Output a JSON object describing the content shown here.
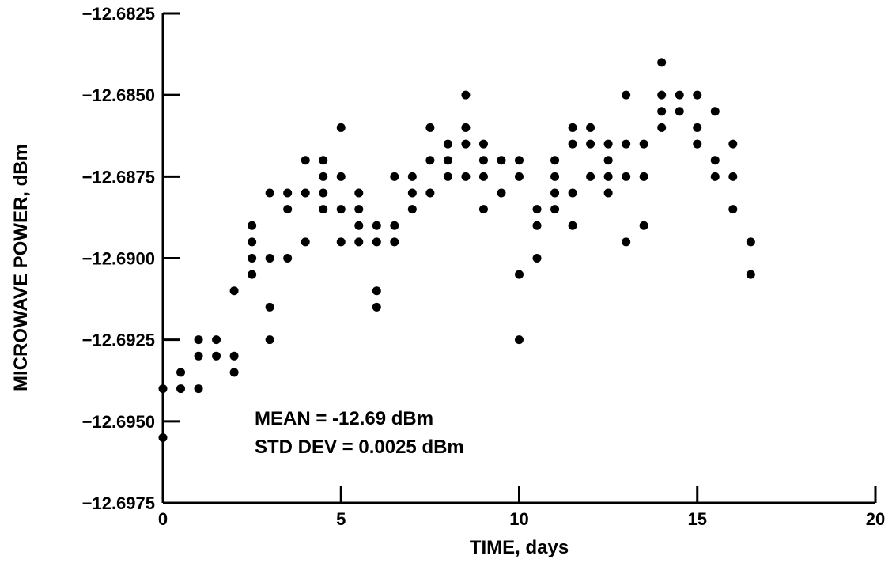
{
  "chart_data": {
    "type": "scatter",
    "xlabel": "TIME, days",
    "ylabel": "MICROWAVE POWER, dBm",
    "xlim": [
      0,
      20
    ],
    "ylim": [
      -12.6975,
      -12.6825
    ],
    "xticks": [
      0,
      5,
      10,
      15,
      20
    ],
    "yticks": [
      -12.6975,
      -12.695,
      -12.6925,
      -12.69,
      -12.6875,
      -12.685,
      -12.6825
    ],
    "xtick_labels": [
      "0",
      "5",
      "10",
      "15",
      "20"
    ],
    "ytick_labels": [
      "−12.6975",
      "−12.6950",
      "−12.6925",
      "−12.6900",
      "−12.6875",
      "−12.6850",
      "−12.6825"
    ],
    "grid": false,
    "annotations": [
      "MEAN = -12.69 dBm",
      "STD DEV = 0.0025 dBm"
    ],
    "series": [
      {
        "points": [
          [
            0,
            -12.694
          ],
          [
            0,
            -12.6955
          ],
          [
            0.5,
            -12.6935
          ],
          [
            0.5,
            -12.694
          ],
          [
            1,
            -12.6925
          ],
          [
            1,
            -12.693
          ],
          [
            1,
            -12.694
          ],
          [
            1.5,
            -12.6925
          ],
          [
            1.5,
            -12.693
          ],
          [
            2,
            -12.691
          ],
          [
            2,
            -12.693
          ],
          [
            2,
            -12.6935
          ],
          [
            2.5,
            -12.689
          ],
          [
            2.5,
            -12.6895
          ],
          [
            2.5,
            -12.69
          ],
          [
            2.5,
            -12.6905
          ],
          [
            3,
            -12.688
          ],
          [
            3,
            -12.69
          ],
          [
            3,
            -12.6915
          ],
          [
            3,
            -12.6925
          ],
          [
            3.5,
            -12.688
          ],
          [
            3.5,
            -12.6885
          ],
          [
            3.5,
            -12.69
          ],
          [
            4,
            -12.687
          ],
          [
            4,
            -12.688
          ],
          [
            4,
            -12.6895
          ],
          [
            4.5,
            -12.687
          ],
          [
            4.5,
            -12.6875
          ],
          [
            4.5,
            -12.688
          ],
          [
            4.5,
            -12.6885
          ],
          [
            5,
            -12.686
          ],
          [
            5,
            -12.6875
          ],
          [
            5,
            -12.6885
          ],
          [
            5,
            -12.6895
          ],
          [
            5.5,
            -12.688
          ],
          [
            5.5,
            -12.6885
          ],
          [
            5.5,
            -12.689
          ],
          [
            5.5,
            -12.6895
          ],
          [
            6,
            -12.689
          ],
          [
            6,
            -12.6895
          ],
          [
            6,
            -12.691
          ],
          [
            6,
            -12.6915
          ],
          [
            6.5,
            -12.6875
          ],
          [
            6.5,
            -12.689
          ],
          [
            6.5,
            -12.6895
          ],
          [
            7,
            -12.6875
          ],
          [
            7,
            -12.688
          ],
          [
            7,
            -12.6885
          ],
          [
            7.5,
            -12.686
          ],
          [
            7.5,
            -12.687
          ],
          [
            7.5,
            -12.688
          ],
          [
            8,
            -12.6865
          ],
          [
            8,
            -12.687
          ],
          [
            8,
            -12.6875
          ],
          [
            8.5,
            -12.685
          ],
          [
            8.5,
            -12.686
          ],
          [
            8.5,
            -12.6865
          ],
          [
            8.5,
            -12.6875
          ],
          [
            9,
            -12.6865
          ],
          [
            9,
            -12.687
          ],
          [
            9,
            -12.6875
          ],
          [
            9,
            -12.6885
          ],
          [
            9.5,
            -12.687
          ],
          [
            9.5,
            -12.688
          ],
          [
            10,
            -12.687
          ],
          [
            10,
            -12.6875
          ],
          [
            10,
            -12.6905
          ],
          [
            10,
            -12.6925
          ],
          [
            10.5,
            -12.6885
          ],
          [
            10.5,
            -12.689
          ],
          [
            10.5,
            -12.69
          ],
          [
            11,
            -12.687
          ],
          [
            11,
            -12.6875
          ],
          [
            11,
            -12.688
          ],
          [
            11,
            -12.6885
          ],
          [
            11.5,
            -12.686
          ],
          [
            11.5,
            -12.6865
          ],
          [
            11.5,
            -12.688
          ],
          [
            11.5,
            -12.689
          ],
          [
            12,
            -12.686
          ],
          [
            12,
            -12.6865
          ],
          [
            12,
            -12.6875
          ],
          [
            12.5,
            -12.6865
          ],
          [
            12.5,
            -12.687
          ],
          [
            12.5,
            -12.6875
          ],
          [
            12.5,
            -12.688
          ],
          [
            13,
            -12.685
          ],
          [
            13,
            -12.6865
          ],
          [
            13,
            -12.6875
          ],
          [
            13,
            -12.6895
          ],
          [
            13.5,
            -12.6865
          ],
          [
            13.5,
            -12.6875
          ],
          [
            13.5,
            -12.689
          ],
          [
            14,
            -12.684
          ],
          [
            14,
            -12.685
          ],
          [
            14,
            -12.6855
          ],
          [
            14,
            -12.686
          ],
          [
            14.5,
            -12.685
          ],
          [
            14.5,
            -12.6855
          ],
          [
            15,
            -12.685
          ],
          [
            15,
            -12.686
          ],
          [
            15,
            -12.6865
          ],
          [
            15.5,
            -12.6855
          ],
          [
            15.5,
            -12.687
          ],
          [
            15.5,
            -12.6875
          ],
          [
            16,
            -12.6865
          ],
          [
            16,
            -12.6875
          ],
          [
            16,
            -12.6885
          ],
          [
            16.5,
            -12.6895
          ],
          [
            16.5,
            -12.6905
          ]
        ]
      }
    ]
  }
}
